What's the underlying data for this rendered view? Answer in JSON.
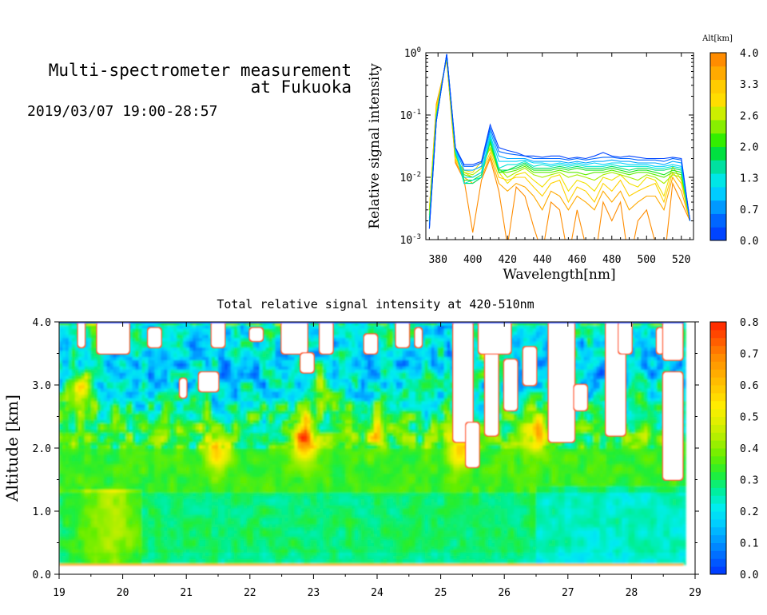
{
  "header": {
    "title_line1": "Multi-spectrometer measurement",
    "title_line2": "at Fukuoka",
    "datetime": "2019/03/07 19:00-28:57"
  },
  "colors": {
    "profile_scale": [
      "#0044ff",
      "#0066ff",
      "#0099ff",
      "#00ccff",
      "#00e6e6",
      "#00e0a0",
      "#00e040",
      "#33ee00",
      "#88ee00",
      "#ccee00",
      "#ffdd00",
      "#ffcc00",
      "#ffaa00",
      "#ff8c00"
    ],
    "heatmap_scale": [
      "#0033ff",
      "#0066ff",
      "#0099ff",
      "#00ccff",
      "#00eeee",
      "#00ee99",
      "#22ee33",
      "#66ee00",
      "#aaee00",
      "#ddee00",
      "#ffee00",
      "#ffcc00",
      "#ffaa00",
      "#ff8800",
      "#ff5500",
      "#ff2200"
    ]
  },
  "chart_data": [
    {
      "type": "line",
      "ylabel": "Relative signal intensity",
      "xlabel": "Wavelength[nm]",
      "ylog": true,
      "ylim": [
        0.001,
        1
      ],
      "xlim": [
        373,
        527
      ],
      "xticks": [
        380,
        400,
        420,
        440,
        460,
        480,
        500,
        520
      ],
      "xtick_labels": [
        "380",
        "400",
        "420",
        "440",
        "460",
        "480",
        "500",
        "520"
      ],
      "yticks": [
        {
          "value": 0.001,
          "base": "10",
          "exp": "-3"
        },
        {
          "value": 0.01,
          "base": "10",
          "exp": "-2"
        },
        {
          "value": 0.1,
          "base": "10",
          "exp": "-1"
        },
        {
          "value": 1,
          "base": "10",
          "exp": "0"
        }
      ],
      "colorbar": {
        "label": "Alt[km]",
        "ticks": [
          "4.0",
          "3.3",
          "2.6",
          "2.0",
          "1.3",
          "0.7",
          "0.0"
        ],
        "range": [
          0,
          4
        ]
      },
      "x": [
        375,
        379,
        385,
        390,
        395,
        400,
        405,
        410,
        415,
        420,
        425,
        430,
        435,
        440,
        445,
        450,
        455,
        460,
        465,
        470,
        475,
        480,
        485,
        490,
        495,
        500,
        505,
        510,
        515,
        520,
        525
      ],
      "series": [
        {
          "alt": 0.0,
          "values": [
            0.0015,
            0.08,
            0.95,
            0.03,
            0.016,
            0.016,
            0.018,
            0.07,
            0.03,
            0.027,
            0.025,
            0.022,
            0.022,
            0.021,
            0.022,
            0.022,
            0.02,
            0.021,
            0.02,
            0.022,
            0.025,
            0.022,
            0.021,
            0.022,
            0.021,
            0.02,
            0.02,
            0.02,
            0.021,
            0.02,
            0.002
          ]
        },
        {
          "alt": 0.3,
          "values": [
            0.0015,
            0.08,
            0.95,
            0.03,
            0.015,
            0.015,
            0.017,
            0.062,
            0.026,
            0.024,
            0.023,
            0.022,
            0.02,
            0.02,
            0.02,
            0.02,
            0.019,
            0.02,
            0.019,
            0.02,
            0.021,
            0.021,
            0.02,
            0.02,
            0.019,
            0.019,
            0.019,
            0.018,
            0.02,
            0.019,
            0.002
          ]
        },
        {
          "alt": 0.7,
          "values": [
            0.0016,
            0.08,
            0.94,
            0.029,
            0.013,
            0.013,
            0.015,
            0.055,
            0.022,
            0.02,
            0.02,
            0.02,
            0.018,
            0.018,
            0.018,
            0.018,
            0.017,
            0.018,
            0.017,
            0.018,
            0.018,
            0.019,
            0.018,
            0.018,
            0.017,
            0.017,
            0.017,
            0.016,
            0.018,
            0.017,
            0.002
          ]
        },
        {
          "alt": 1.0,
          "values": [
            0.0017,
            0.08,
            0.93,
            0.028,
            0.01,
            0.01,
            0.012,
            0.048,
            0.018,
            0.018,
            0.018,
            0.019,
            0.017,
            0.017,
            0.016,
            0.017,
            0.016,
            0.017,
            0.016,
            0.017,
            0.016,
            0.017,
            0.017,
            0.016,
            0.016,
            0.016,
            0.015,
            0.015,
            0.016,
            0.015,
            0.002
          ]
        },
        {
          "alt": 1.3,
          "values": [
            0.0018,
            0.09,
            0.92,
            0.027,
            0.008,
            0.009,
            0.01,
            0.045,
            0.014,
            0.016,
            0.016,
            0.018,
            0.015,
            0.016,
            0.015,
            0.016,
            0.015,
            0.016,
            0.015,
            0.015,
            0.015,
            0.016,
            0.015,
            0.015,
            0.015,
            0.015,
            0.014,
            0.014,
            0.015,
            0.014,
            0.002
          ]
        },
        {
          "alt": 1.7,
          "values": [
            0.002,
            0.09,
            0.9,
            0.026,
            0.008,
            0.008,
            0.01,
            0.04,
            0.013,
            0.013,
            0.015,
            0.017,
            0.014,
            0.014,
            0.014,
            0.015,
            0.014,
            0.015,
            0.014,
            0.014,
            0.014,
            0.015,
            0.014,
            0.013,
            0.014,
            0.014,
            0.013,
            0.013,
            0.014,
            0.013,
            0.002
          ]
        },
        {
          "alt": 2.0,
          "values": [
            0.002,
            0.09,
            0.9,
            0.025,
            0.009,
            0.009,
            0.011,
            0.038,
            0.012,
            0.013,
            0.014,
            0.016,
            0.013,
            0.013,
            0.013,
            0.014,
            0.013,
            0.014,
            0.013,
            0.013,
            0.013,
            0.014,
            0.013,
            0.012,
            0.013,
            0.013,
            0.012,
            0.011,
            0.013,
            0.012,
            0.002
          ]
        },
        {
          "alt": 2.3,
          "values": [
            0.0022,
            0.1,
            0.88,
            0.024,
            0.011,
            0.01,
            0.012,
            0.035,
            0.012,
            0.012,
            0.013,
            0.015,
            0.012,
            0.012,
            0.012,
            0.013,
            0.012,
            0.012,
            0.011,
            0.012,
            0.012,
            0.013,
            0.012,
            0.011,
            0.012,
            0.012,
            0.011,
            0.01,
            0.012,
            0.011,
            0.002
          ]
        },
        {
          "alt": 2.6,
          "values": [
            0.0025,
            0.1,
            0.85,
            0.022,
            0.012,
            0.011,
            0.014,
            0.03,
            0.014,
            0.01,
            0.012,
            0.014,
            0.011,
            0.01,
            0.011,
            0.012,
            0.01,
            0.011,
            0.01,
            0.009,
            0.011,
            0.012,
            0.011,
            0.01,
            0.009,
            0.011,
            0.01,
            0.008,
            0.011,
            0.01,
            0.002
          ]
        },
        {
          "alt": 3.0,
          "values": [
            0.003,
            0.12,
            0.82,
            0.02,
            0.013,
            0.012,
            0.018,
            0.028,
            0.012,
            0.008,
            0.011,
            0.012,
            0.009,
            0.007,
            0.01,
            0.011,
            0.006,
            0.009,
            0.008,
            0.006,
            0.01,
            0.009,
            0.011,
            0.008,
            0.007,
            0.01,
            0.009,
            0.005,
            0.015,
            0.009,
            0.002
          ]
        },
        {
          "alt": 3.3,
          "values": [
            0.003,
            0.13,
            0.8,
            0.019,
            0.012,
            0.01,
            0.012,
            0.025,
            0.01,
            0.009,
            0.01,
            0.01,
            0.007,
            0.005,
            0.008,
            0.009,
            0.004,
            0.007,
            0.006,
            0.004,
            0.008,
            0.006,
            0.009,
            0.005,
            0.006,
            0.007,
            0.008,
            0.004,
            0.012,
            0.008,
            0.002
          ]
        },
        {
          "alt": 3.7,
          "values": [
            0.003,
            0.14,
            0.78,
            0.018,
            0.01,
            0.008,
            0.01,
            0.022,
            0.008,
            0.006,
            0.008,
            0.007,
            0.005,
            0.003,
            0.006,
            0.005,
            0.003,
            0.005,
            0.004,
            0.003,
            0.006,
            0.004,
            0.006,
            0.003,
            0.004,
            0.005,
            0.005,
            0.003,
            0.01,
            0.006,
            0.002
          ]
        },
        {
          "alt": 4.0,
          "values": [
            0.003,
            0.15,
            0.75,
            0.017,
            0.009,
            0.0013,
            0.009,
            0.02,
            0.006,
            0.0008,
            0.007,
            0.005,
            0.0016,
            0.0006,
            0.004,
            0.003,
            0.0005,
            0.003,
            0.0008,
            0.0004,
            0.004,
            0.002,
            0.004,
            0.0004,
            0.002,
            0.003,
            0.0009,
            0.0004,
            0.008,
            0.004,
            0.002
          ]
        }
      ]
    },
    {
      "type": "heatmap",
      "title": "Total relative signal intensity at 420-510nm",
      "ylabel": "Altitude [km]",
      "xlabel": "",
      "xlim": [
        19,
        29
      ],
      "ylim": [
        0,
        4
      ],
      "xticks": [
        "19",
        "20",
        "21",
        "22",
        "23",
        "24",
        "25",
        "26",
        "27",
        "28",
        "29"
      ],
      "yticks": [
        "0.0",
        "1.0",
        "2.0",
        "3.0",
        "4.0"
      ],
      "data_extent": {
        "x": [
          19,
          28.82
        ],
        "y": [
          0.15,
          4.0
        ]
      },
      "colorbar": {
        "ticks": [
          "0.8",
          "0.7",
          "0.6",
          "0.5",
          "0.4",
          "0.3",
          "0.2",
          "0.1",
          "0.0"
        ],
        "range": [
          0,
          0.8
        ]
      },
      "gaps": [
        {
          "x": [
            19.3,
            19.4
          ],
          "y": [
            3.6,
            4.0
          ]
        },
        {
          "x": [
            19.6,
            20.1
          ],
          "y": [
            3.5,
            4.0
          ]
        },
        {
          "x": [
            20.4,
            20.6
          ],
          "y": [
            3.6,
            3.9
          ]
        },
        {
          "x": [
            20.9,
            21.0
          ],
          "y": [
            2.8,
            3.1
          ]
        },
        {
          "x": [
            21.2,
            21.5
          ],
          "y": [
            2.9,
            3.2
          ]
        },
        {
          "x": [
            21.4,
            21.6
          ],
          "y": [
            3.6,
            4.0
          ]
        },
        {
          "x": [
            22.0,
            22.2
          ],
          "y": [
            3.7,
            3.9
          ]
        },
        {
          "x": [
            22.5,
            22.9
          ],
          "y": [
            3.5,
            4.0
          ]
        },
        {
          "x": [
            22.8,
            23.0
          ],
          "y": [
            3.2,
            3.5
          ]
        },
        {
          "x": [
            23.1,
            23.3
          ],
          "y": [
            3.5,
            4.0
          ]
        },
        {
          "x": [
            23.8,
            24.0
          ],
          "y": [
            3.5,
            3.8
          ]
        },
        {
          "x": [
            24.3,
            24.5
          ],
          "y": [
            3.6,
            4.0
          ]
        },
        {
          "x": [
            24.6,
            24.7
          ],
          "y": [
            3.6,
            3.9
          ]
        },
        {
          "x": [
            25.2,
            25.5
          ],
          "y": [
            2.1,
            4.0
          ]
        },
        {
          "x": [
            25.4,
            25.6
          ],
          "y": [
            1.7,
            2.4
          ]
        },
        {
          "x": [
            25.7,
            25.9
          ],
          "y": [
            2.2,
            3.8
          ]
        },
        {
          "x": [
            25.6,
            26.1
          ],
          "y": [
            3.5,
            4.0
          ]
        },
        {
          "x": [
            26.0,
            26.2
          ],
          "y": [
            2.6,
            3.4
          ]
        },
        {
          "x": [
            26.3,
            26.5
          ],
          "y": [
            3.0,
            3.6
          ]
        },
        {
          "x": [
            26.7,
            27.1
          ],
          "y": [
            2.1,
            4.0
          ]
        },
        {
          "x": [
            27.1,
            27.3
          ],
          "y": [
            2.6,
            3.0
          ]
        },
        {
          "x": [
            27.6,
            27.9
          ],
          "y": [
            2.2,
            4.0
          ]
        },
        {
          "x": [
            27.8,
            28.0
          ],
          "y": [
            3.5,
            4.0
          ]
        },
        {
          "x": [
            28.4,
            28.5
          ],
          "y": [
            3.5,
            3.9
          ]
        },
        {
          "x": [
            28.5,
            28.8
          ],
          "y": [
            1.5,
            3.2
          ]
        },
        {
          "x": [
            28.5,
            28.8
          ],
          "y": [
            3.4,
            4.0
          ]
        }
      ]
    }
  ]
}
